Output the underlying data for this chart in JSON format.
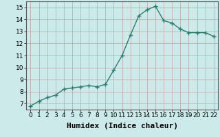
{
  "x": [
    0,
    1,
    2,
    3,
    4,
    5,
    6,
    7,
    8,
    9,
    10,
    11,
    12,
    13,
    14,
    15,
    16,
    17,
    18,
    19,
    20,
    21,
    22
  ],
  "y": [
    6.8,
    7.2,
    7.5,
    7.7,
    8.2,
    8.3,
    8.4,
    8.5,
    8.4,
    8.6,
    9.8,
    11.0,
    12.7,
    14.3,
    14.8,
    15.1,
    13.9,
    13.7,
    13.2,
    12.9,
    12.9,
    12.9,
    12.6
  ],
  "line_color": "#2d7d6e",
  "marker": "+",
  "marker_size": 4,
  "bg_color": "#cceaea",
  "grid_color": "#b0d8d8",
  "xlabel": "Humidex (Indice chaleur)",
  "xlim": [
    -0.5,
    22.5
  ],
  "ylim": [
    6.5,
    15.5
  ],
  "yticks": [
    7,
    8,
    9,
    10,
    11,
    12,
    13,
    14,
    15
  ],
  "xticks": [
    0,
    1,
    2,
    3,
    4,
    5,
    6,
    7,
    8,
    9,
    10,
    11,
    12,
    13,
    14,
    15,
    16,
    17,
    18,
    19,
    20,
    21,
    22
  ],
  "xlabel_fontsize": 8,
  "tick_fontsize": 6.5,
  "line_width": 1.0
}
